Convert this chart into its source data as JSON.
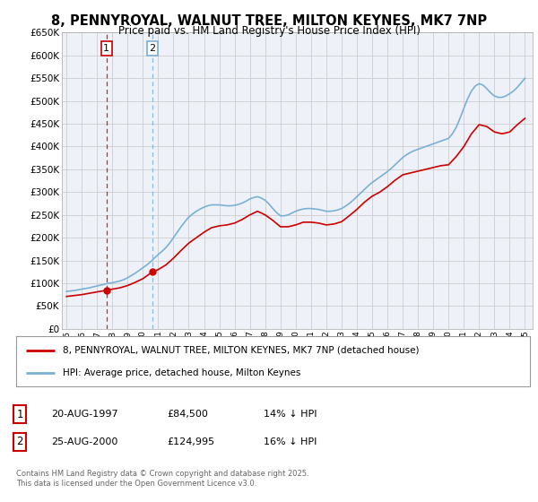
{
  "title": "8, PENNYROYAL, WALNUT TREE, MILTON KEYNES, MK7 7NP",
  "subtitle": "Price paid vs. HM Land Registry's House Price Index (HPI)",
  "legend_line1": "8, PENNYROYAL, WALNUT TREE, MILTON KEYNES, MK7 7NP (detached house)",
  "legend_line2": "HPI: Average price, detached house, Milton Keynes",
  "footer": "Contains HM Land Registry data © Crown copyright and database right 2025.\nThis data is licensed under the Open Government Licence v3.0.",
  "sale1_date": "20-AUG-1997",
  "sale1_price": 84500,
  "sale1_pct": "14% ↓ HPI",
  "sale2_date": "25-AUG-2000",
  "sale2_price": 124995,
  "sale2_pct": "16% ↓ HPI",
  "red_color": "#cc0000",
  "blue_color": "#7ab0d4",
  "ylim_min": 0,
  "ylim_max": 650000,
  "grid_color": "#cccccc",
  "background_color": "#ffffff",
  "plot_bg_color": "#eef2f8",
  "sale1_year": 1997.622,
  "sale2_year": 2000.622,
  "years_hpi": [
    1995.0,
    1995.25,
    1995.5,
    1995.75,
    1996.0,
    1996.25,
    1996.5,
    1996.75,
    1997.0,
    1997.25,
    1997.5,
    1997.75,
    1998.0,
    1998.25,
    1998.5,
    1998.75,
    1999.0,
    1999.25,
    1999.5,
    1999.75,
    2000.0,
    2000.25,
    2000.5,
    2000.75,
    2001.0,
    2001.25,
    2001.5,
    2001.75,
    2002.0,
    2002.25,
    2002.5,
    2002.75,
    2003.0,
    2003.25,
    2003.5,
    2003.75,
    2004.0,
    2004.25,
    2004.5,
    2004.75,
    2005.0,
    2005.25,
    2005.5,
    2005.75,
    2006.0,
    2006.25,
    2006.5,
    2006.75,
    2007.0,
    2007.25,
    2007.5,
    2007.75,
    2008.0,
    2008.25,
    2008.5,
    2008.75,
    2009.0,
    2009.25,
    2009.5,
    2009.75,
    2010.0,
    2010.25,
    2010.5,
    2010.75,
    2011.0,
    2011.25,
    2011.5,
    2011.75,
    2012.0,
    2012.25,
    2012.5,
    2012.75,
    2013.0,
    2013.25,
    2013.5,
    2013.75,
    2014.0,
    2014.25,
    2014.5,
    2014.75,
    2015.0,
    2015.25,
    2015.5,
    2015.75,
    2016.0,
    2016.25,
    2016.5,
    2016.75,
    2017.0,
    2017.25,
    2017.5,
    2017.75,
    2018.0,
    2018.25,
    2018.5,
    2018.75,
    2019.0,
    2019.25,
    2019.5,
    2019.75,
    2020.0,
    2020.25,
    2020.5,
    2020.75,
    2021.0,
    2021.25,
    2021.5,
    2021.75,
    2022.0,
    2022.25,
    2022.5,
    2022.75,
    2023.0,
    2023.25,
    2023.5,
    2023.75,
    2024.0,
    2024.25,
    2024.5,
    2024.75,
    2025.0
  ],
  "hpi_values": [
    82000,
    83000,
    84000,
    85500,
    87000,
    88500,
    90000,
    92000,
    94000,
    96000,
    98000,
    100000,
    101000,
    103000,
    105000,
    108000,
    112000,
    117000,
    122000,
    128000,
    134000,
    140000,
    147000,
    155000,
    163000,
    170000,
    178000,
    188000,
    200000,
    212000,
    224000,
    235000,
    245000,
    252000,
    258000,
    263000,
    267000,
    270000,
    272000,
    272000,
    272000,
    271000,
    270000,
    270000,
    271000,
    273000,
    276000,
    280000,
    285000,
    288000,
    290000,
    287000,
    282000,
    274000,
    264000,
    255000,
    248000,
    248000,
    250000,
    254000,
    258000,
    261000,
    263000,
    264000,
    264000,
    263000,
    262000,
    260000,
    258000,
    258000,
    259000,
    261000,
    264000,
    269000,
    275000,
    282000,
    290000,
    298000,
    306000,
    314000,
    321000,
    327000,
    333000,
    339000,
    345000,
    352000,
    360000,
    368000,
    376000,
    382000,
    387000,
    391000,
    394000,
    397000,
    400000,
    403000,
    406000,
    409000,
    412000,
    415000,
    418000,
    428000,
    442000,
    462000,
    484000,
    505000,
    522000,
    533000,
    538000,
    535000,
    527000,
    518000,
    511000,
    508000,
    508000,
    511000,
    516000,
    522000,
    530000,
    540000,
    550000
  ],
  "years_red": [
    1995.0,
    1995.5,
    1996.0,
    1996.5,
    1997.0,
    1997.622,
    1998.0,
    1998.5,
    1999.0,
    1999.5,
    2000.0,
    2000.622,
    2001.0,
    2001.5,
    2002.0,
    2002.5,
    2003.0,
    2003.5,
    2004.0,
    2004.5,
    2005.0,
    2005.5,
    2006.0,
    2006.5,
    2007.0,
    2007.5,
    2008.0,
    2008.5,
    2009.0,
    2009.5,
    2010.0,
    2010.5,
    2011.0,
    2011.5,
    2012.0,
    2012.5,
    2013.0,
    2013.5,
    2014.0,
    2014.5,
    2015.0,
    2015.5,
    2016.0,
    2016.5,
    2017.0,
    2017.5,
    2018.0,
    2018.5,
    2019.0,
    2019.5,
    2020.0,
    2020.5,
    2021.0,
    2021.5,
    2022.0,
    2022.5,
    2023.0,
    2023.5,
    2024.0,
    2024.5,
    2025.0
  ],
  "red_values": [
    71000,
    73000,
    75000,
    78000,
    81000,
    84500,
    87000,
    90000,
    95000,
    102000,
    110000,
    124995,
    130000,
    140000,
    155000,
    172000,
    188000,
    200000,
    212000,
    222000,
    226000,
    228000,
    232000,
    240000,
    250000,
    258000,
    250000,
    238000,
    224000,
    224000,
    228000,
    234000,
    234000,
    232000,
    228000,
    230000,
    235000,
    248000,
    262000,
    278000,
    291000,
    300000,
    312000,
    326000,
    338000,
    342000,
    346000,
    350000,
    354000,
    358000,
    360000,
    378000,
    400000,
    428000,
    448000,
    444000,
    432000,
    428000,
    432000,
    448000,
    462000
  ]
}
